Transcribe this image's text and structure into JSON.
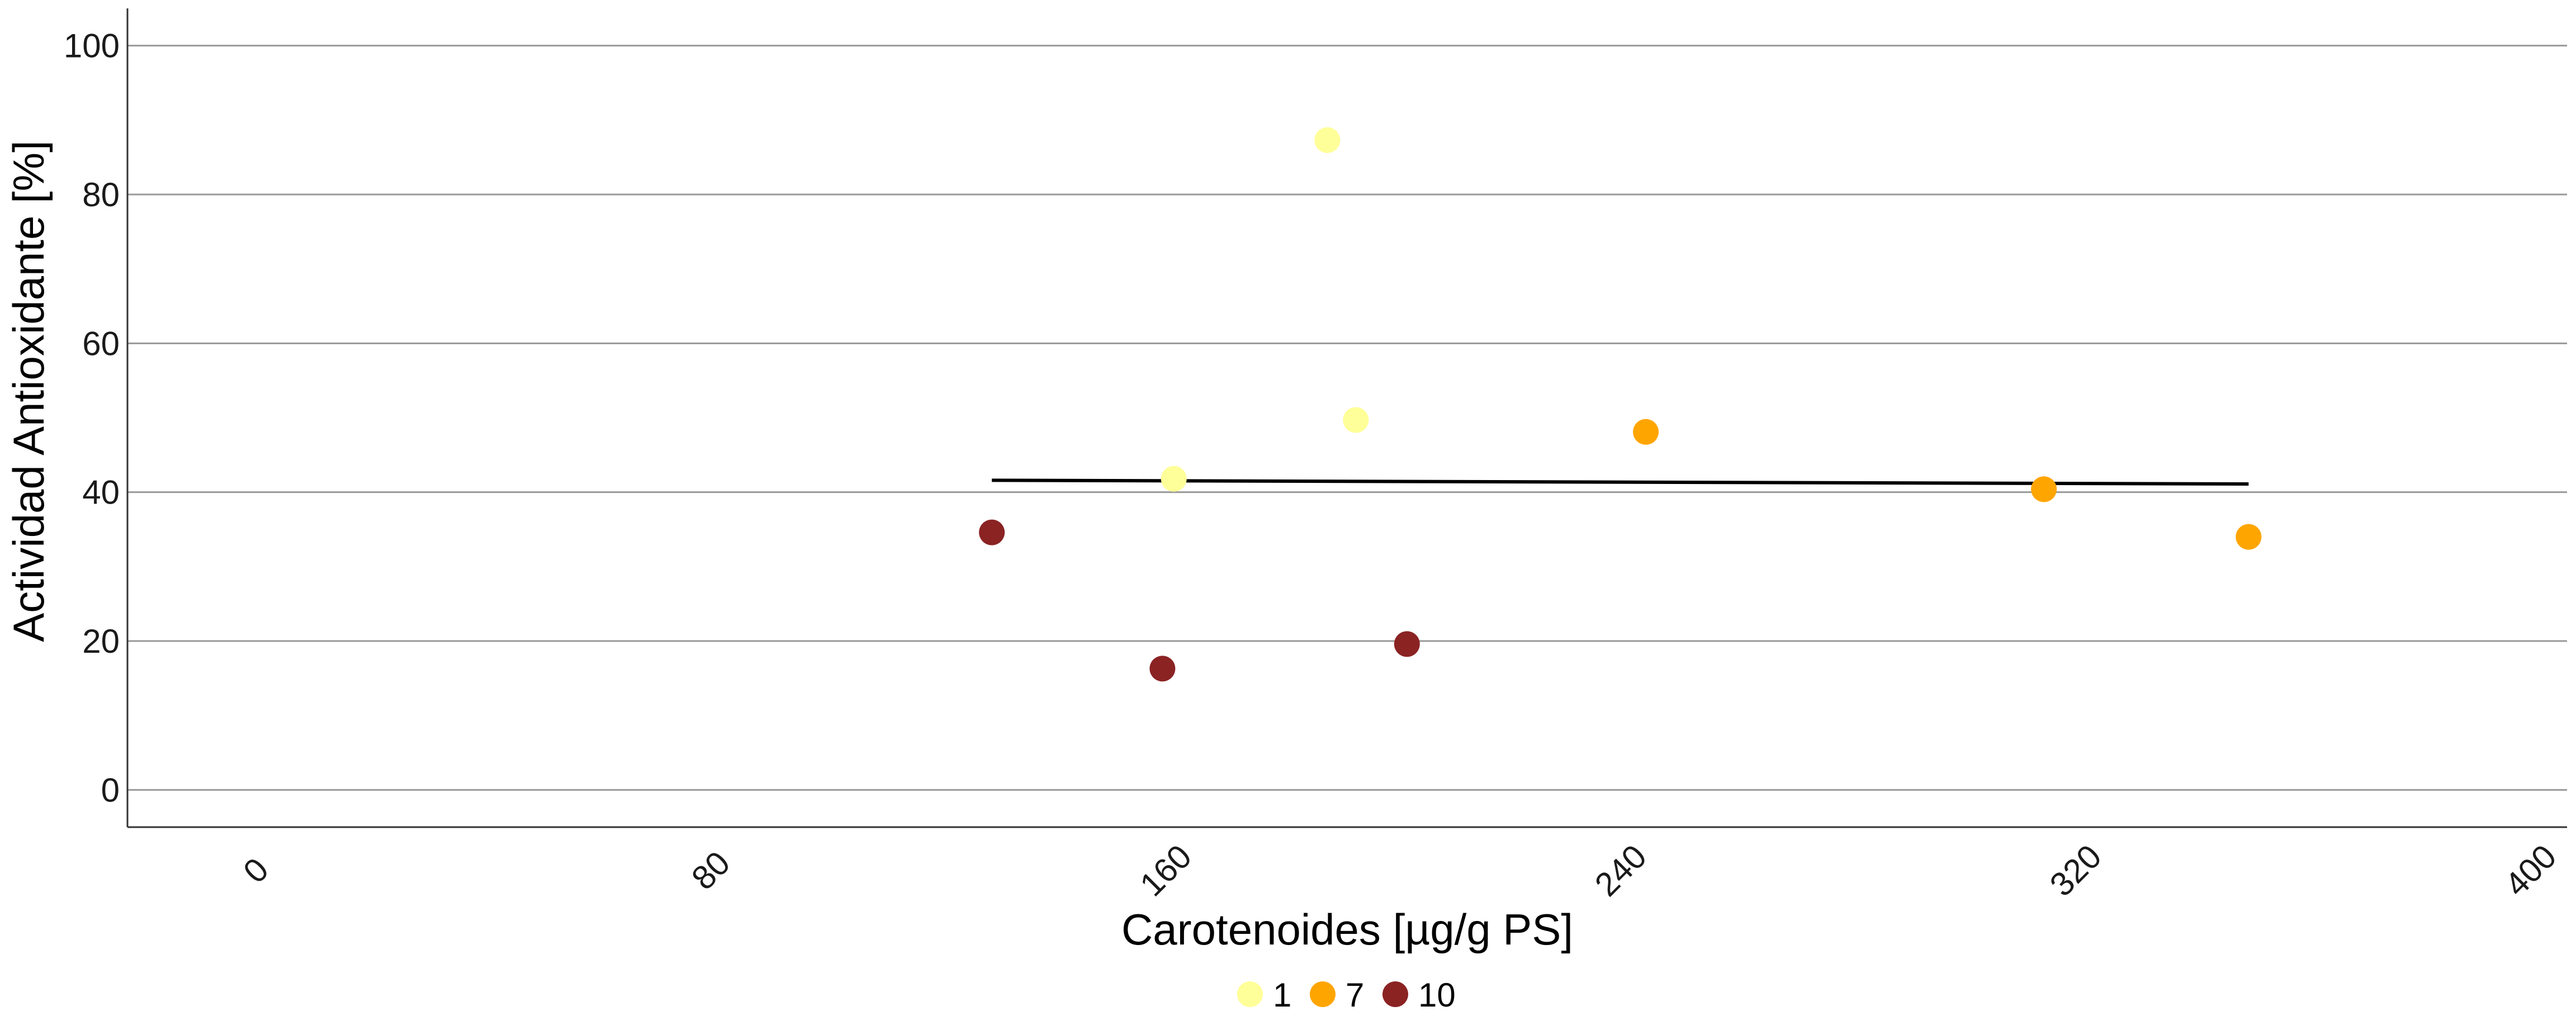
{
  "chart_data": {
    "type": "scatter",
    "title": "",
    "xlabel": "Carotenoides [µg/g PS]",
    "ylabel": "Actividad Antioxidante [%]",
    "xlim": [
      -24,
      405
    ],
    "ylim": [
      -5,
      105
    ],
    "xticks": [
      0,
      80,
      160,
      240,
      320,
      400
    ],
    "yticks": [
      0,
      20,
      40,
      60,
      80,
      100
    ],
    "grid": "horizontal-major",
    "legend_position": "bottom",
    "series": [
      {
        "name": "1",
        "color": "#FFFF99",
        "points": [
          {
            "x": 187,
            "y": 87.3
          },
          {
            "x": 192,
            "y": 49.7
          },
          {
            "x": 160,
            "y": 41.8
          }
        ]
      },
      {
        "name": "7",
        "color": "#FFA500",
        "points": [
          {
            "x": 243,
            "y": 48.1
          },
          {
            "x": 313,
            "y": 40.4
          },
          {
            "x": 349,
            "y": 34.0
          }
        ]
      },
      {
        "name": "10",
        "color": "#8B2323",
        "points": [
          {
            "x": 128,
            "y": 34.6
          },
          {
            "x": 158,
            "y": 16.3
          },
          {
            "x": 201,
            "y": 19.6
          }
        ]
      }
    ],
    "trend_line": {
      "color": "#000000",
      "points": [
        {
          "x": 128,
          "y": 41.6
        },
        {
          "x": 349,
          "y": 41.1
        }
      ]
    }
  }
}
